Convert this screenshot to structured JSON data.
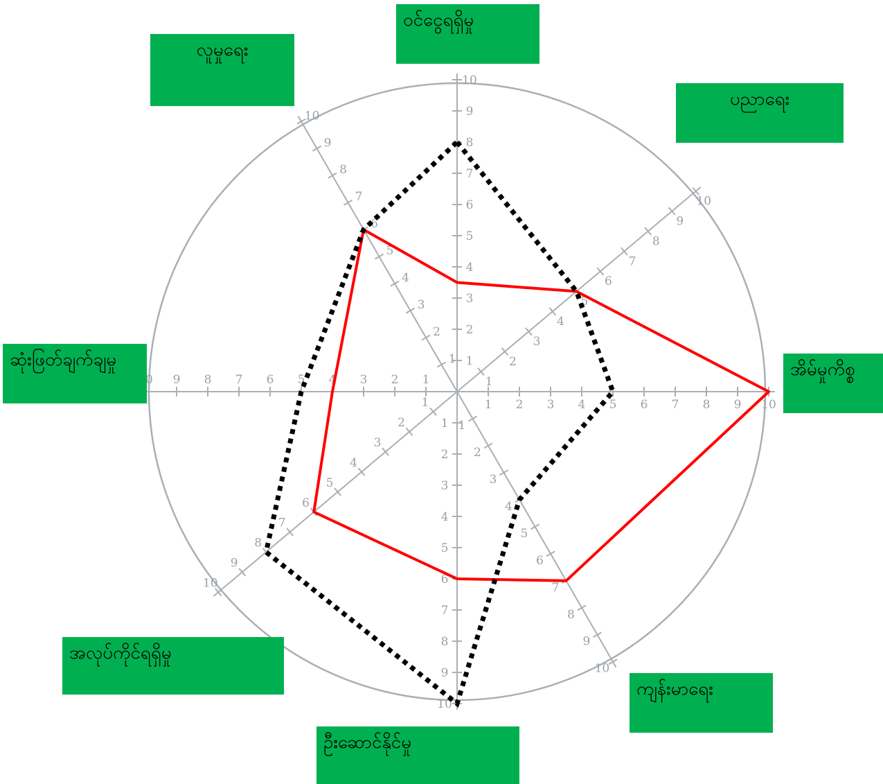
{
  "chart_data": {
    "type": "radar",
    "axes": [
      "ဝင်ငွေရရှိမှု",
      "ပညာရေး",
      "အိမ်မှုကိစ္စ",
      "ကျန်းမာရေး",
      "ဦးဆောင်နိုင်မှု",
      "အလုပ်ကိုင်ရရှိမှု",
      "ဆုံးဖြတ်ချက်ချမှု",
      "လူမှုရေး"
    ],
    "scale": {
      "min": 0,
      "max": 10,
      "ticks": [
        1,
        2,
        3,
        4,
        5,
        6,
        7,
        8,
        9,
        10
      ]
    },
    "series": [
      {
        "color": "#ff0000",
        "style": "solid",
        "values": [
          3.5,
          5,
          10,
          7,
          6,
          6,
          4,
          6
        ]
      },
      {
        "color": "#000000",
        "style": "dotted",
        "values": [
          8,
          5,
          5,
          4,
          10,
          8,
          5,
          6
        ]
      }
    ]
  },
  "colors": {
    "label_box": "#00b050",
    "grid": "#a9afb4"
  }
}
